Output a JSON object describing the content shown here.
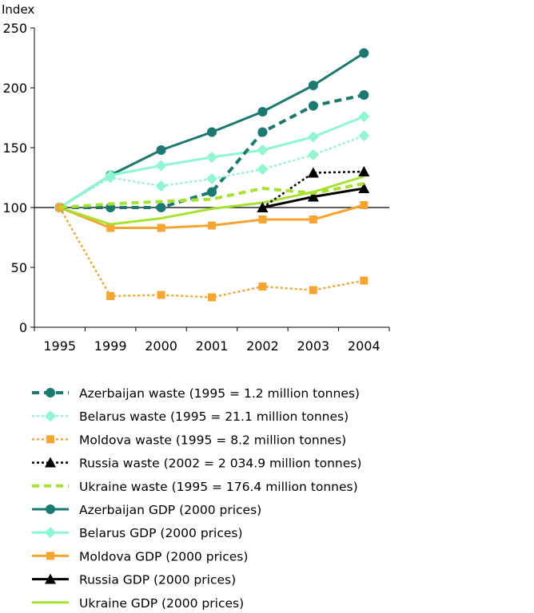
{
  "chart_data": {
    "type": "line",
    "ylabel": "Index",
    "categories": [
      "1995",
      "1999",
      "2000",
      "2001",
      "2002",
      "2003",
      "2004"
    ],
    "ylim": [
      0,
      250
    ],
    "yticks": [
      0,
      50,
      100,
      150,
      200,
      250
    ],
    "reference_line": 100,
    "grid": false,
    "legend_position": "bottom",
    "series": [
      {
        "name": "Azerbaijan waste (1995 = 1.2 million tonnes)",
        "style": "dashed",
        "marker": "circle",
        "color": "#1a7a72",
        "values": [
          100,
          100,
          100,
          113,
          163,
          185,
          194
        ]
      },
      {
        "name": "Belarus waste (1995 = 21.1 million tonnes)",
        "style": "dotted",
        "marker": "diamond",
        "color": "#8ef7d0",
        "values": [
          100,
          125,
          118,
          124,
          132,
          144,
          160
        ]
      },
      {
        "name": "Moldova waste (1995 = 8.2 million tonnes)",
        "style": "dotted",
        "marker": "square",
        "color": "#f7a531",
        "values": [
          100,
          26,
          27,
          25,
          34,
          31,
          39
        ]
      },
      {
        "name": "Russia waste (2002 = 2 034.9 million tonnes)",
        "style": "dotted",
        "marker": "triangle",
        "color": "#000000",
        "values": [
          null,
          null,
          null,
          null,
          100,
          129,
          130
        ]
      },
      {
        "name": "Ukraine waste (1995 = 176.4 million tonnes)",
        "style": "dashed",
        "marker": "none",
        "color": "#a6e22e",
        "values": [
          100,
          103,
          105,
          107,
          116,
          112,
          120
        ]
      },
      {
        "name": "Azerbaijan GDP (2000 prices)",
        "style": "solid",
        "marker": "circle",
        "color": "#1a7a72",
        "values": [
          100,
          127,
          148,
          163,
          180,
          202,
          229
        ]
      },
      {
        "name": "Belarus GDP (2000 prices)",
        "style": "solid",
        "marker": "diamond",
        "color": "#8ef7d0",
        "values": [
          100,
          127,
          135,
          142,
          148,
          159,
          176
        ]
      },
      {
        "name": "Moldova GDP (2000 prices)",
        "style": "solid",
        "marker": "square",
        "color": "#f7a531",
        "values": [
          100,
          83,
          83,
          85,
          90,
          90,
          102
        ]
      },
      {
        "name": "Russia GDP (2000 prices)",
        "style": "solid",
        "marker": "triangle",
        "color": "#000000",
        "values": [
          null,
          null,
          null,
          null,
          100,
          109,
          116
        ]
      },
      {
        "name": "Ukraine GDP (2000 prices)",
        "style": "solid",
        "marker": "none",
        "color": "#a6e22e",
        "values": [
          100,
          86,
          91,
          99,
          104,
          113,
          126
        ]
      }
    ]
  }
}
